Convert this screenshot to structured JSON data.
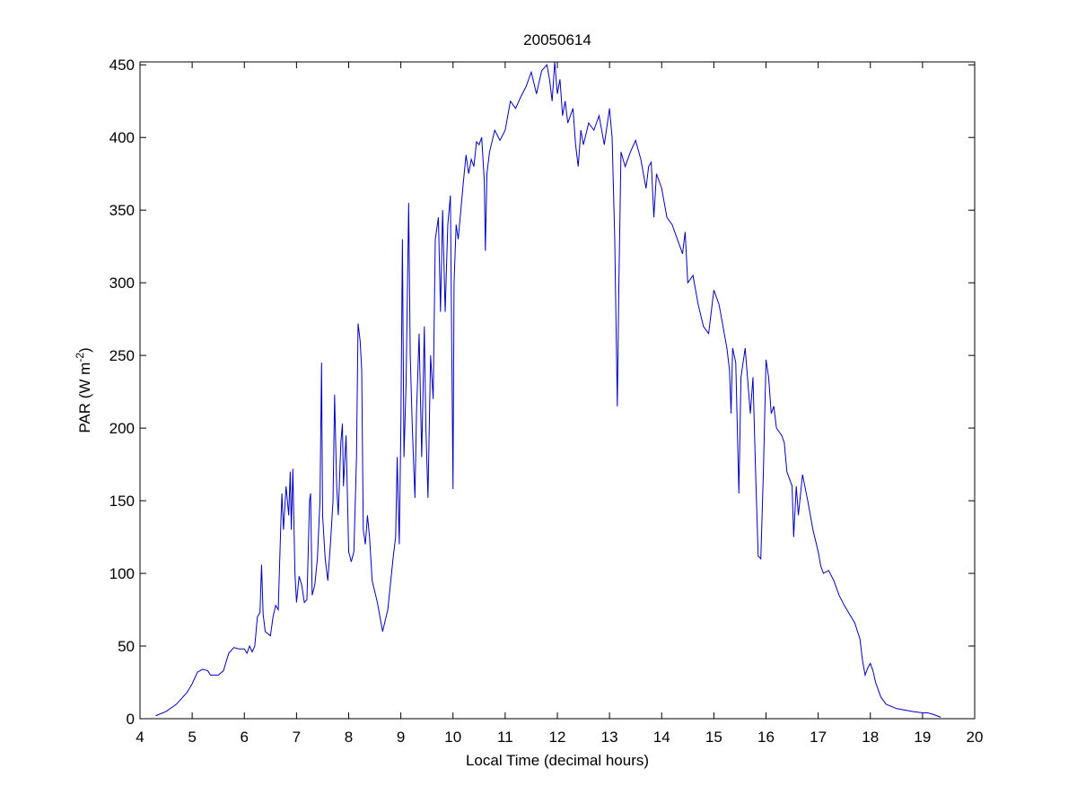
{
  "chart_data": {
    "type": "line",
    "title": "20050614",
    "xlabel": "Local Time (decimal hours)",
    "ylabel": [
      "PAR (W m",
      "-2",
      ")"
    ],
    "xlim": [
      4,
      20
    ],
    "ylim": [
      0,
      452
    ],
    "xticks": [
      4,
      5,
      6,
      7,
      8,
      9,
      10,
      11,
      12,
      13,
      14,
      15,
      16,
      17,
      18,
      19,
      20
    ],
    "yticks": [
      0,
      50,
      100,
      150,
      200,
      250,
      300,
      350,
      400,
      450
    ],
    "x": [
      4.3,
      4.5,
      4.7,
      4.9,
      5.0,
      5.1,
      5.2,
      5.3,
      5.35,
      5.5,
      5.6,
      5.7,
      5.8,
      5.9,
      6.0,
      6.05,
      6.1,
      6.15,
      6.2,
      6.25,
      6.3,
      6.33,
      6.36,
      6.4,
      6.5,
      6.55,
      6.6,
      6.65,
      6.7,
      6.72,
      6.75,
      6.8,
      6.85,
      6.88,
      6.9,
      6.93,
      6.97,
      7.0,
      7.05,
      7.1,
      7.15,
      7.2,
      7.25,
      7.27,
      7.3,
      7.35,
      7.4,
      7.45,
      7.48,
      7.5,
      7.55,
      7.6,
      7.65,
      7.7,
      7.73,
      7.77,
      7.8,
      7.85,
      7.88,
      7.9,
      7.95,
      8.0,
      8.05,
      8.1,
      8.15,
      8.18,
      8.22,
      8.25,
      8.28,
      8.32,
      8.36,
      8.4,
      8.45,
      8.55,
      8.65,
      8.75,
      8.85,
      8.9,
      8.93,
      8.97,
      9.0,
      9.03,
      9.06,
      9.1,
      9.15,
      9.18,
      9.22,
      9.27,
      9.3,
      9.35,
      9.4,
      9.45,
      9.48,
      9.52,
      9.57,
      9.62,
      9.66,
      9.72,
      9.76,
      9.8,
      9.85,
      9.9,
      9.95,
      10.0,
      10.02,
      10.06,
      10.1,
      10.2,
      10.25,
      10.3,
      10.35,
      10.4,
      10.45,
      10.5,
      10.55,
      10.6,
      10.62,
      10.65,
      10.7,
      10.8,
      10.9,
      11.0,
      11.1,
      11.2,
      11.3,
      11.4,
      11.5,
      11.6,
      11.7,
      11.8,
      11.85,
      11.9,
      11.95,
      12.0,
      12.05,
      12.1,
      12.15,
      12.2,
      12.3,
      12.35,
      12.4,
      12.45,
      12.5,
      12.6,
      12.7,
      12.8,
      12.9,
      13.0,
      13.05,
      13.1,
      13.13,
      13.15,
      13.18,
      13.22,
      13.3,
      13.4,
      13.5,
      13.6,
      13.7,
      13.75,
      13.8,
      13.85,
      13.9,
      14.0,
      14.1,
      14.2,
      14.3,
      14.4,
      14.45,
      14.5,
      14.6,
      14.7,
      14.8,
      14.9,
      15.0,
      15.1,
      15.2,
      15.25,
      15.3,
      15.33,
      15.36,
      15.42,
      15.48,
      15.52,
      15.6,
      15.7,
      15.75,
      15.8,
      15.85,
      15.9,
      15.95,
      16.0,
      16.05,
      16.1,
      16.15,
      16.2,
      16.3,
      16.35,
      16.4,
      16.5,
      16.53,
      16.58,
      16.62,
      16.7,
      16.8,
      16.9,
      17.0,
      17.05,
      17.1,
      17.2,
      17.3,
      17.4,
      17.5,
      17.6,
      17.7,
      17.8,
      17.85,
      17.9,
      17.95,
      18.0,
      18.05,
      18.1,
      18.2,
      18.3,
      18.5,
      18.8,
      19.0,
      19.1,
      19.2,
      19.35
    ],
    "series": [
      {
        "color": "#0000c0",
        "values": [
          2,
          5,
          10,
          18,
          24,
          32,
          34,
          33,
          30,
          30,
          33,
          45,
          49,
          48,
          48,
          45,
          50,
          46,
          50,
          70,
          73,
          106,
          72,
          60,
          57,
          70,
          78,
          75,
          135,
          155,
          130,
          160,
          140,
          170,
          130,
          172,
          100,
          80,
          98,
          92,
          80,
          82,
          150,
          155,
          85,
          92,
          110,
          150,
          245,
          140,
          110,
          95,
          120,
          150,
          223,
          160,
          140,
          190,
          203,
          160,
          195,
          115,
          108,
          115,
          180,
          272,
          260,
          240,
          130,
          120,
          140,
          125,
          95,
          80,
          60,
          75,
          110,
          125,
          180,
          120,
          200,
          330,
          180,
          230,
          355,
          250,
          200,
          152,
          210,
          265,
          180,
          270,
          200,
          152,
          250,
          220,
          330,
          345,
          280,
          350,
          280,
          340,
          360,
          158,
          300,
          340,
          330,
          370,
          388,
          375,
          385,
          380,
          397,
          395,
          400,
          370,
          322,
          375,
          390,
          405,
          398,
          405,
          425,
          420,
          428,
          435,
          445,
          430,
          446,
          450,
          440,
          425,
          452,
          430,
          440,
          415,
          425,
          410,
          420,
          395,
          380,
          405,
          395,
          410,
          405,
          415,
          395,
          420,
          400,
          330,
          260,
          215,
          300,
          390,
          380,
          390,
          398,
          385,
          365,
          380,
          383,
          345,
          375,
          365,
          345,
          340,
          330,
          320,
          335,
          300,
          305,
          285,
          270,
          265,
          295,
          285,
          265,
          255,
          240,
          210,
          255,
          245,
          155,
          235,
          255,
          210,
          235,
          170,
          112,
          110,
          170,
          247,
          235,
          210,
          215,
          200,
          195,
          190,
          170,
          160,
          125,
          160,
          140,
          168,
          150,
          130,
          115,
          105,
          100,
          102,
          95,
          85,
          78,
          72,
          66,
          55,
          40,
          30,
          35,
          38,
          33,
          25,
          15,
          10,
          7,
          5,
          4,
          4,
          3,
          1
        ]
      }
    ]
  }
}
